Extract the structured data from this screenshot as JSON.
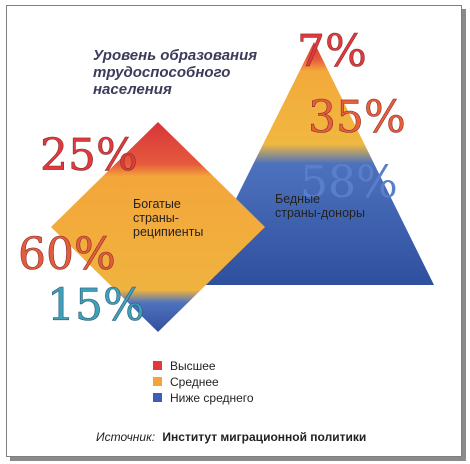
{
  "chart_data": {
    "title": [
      "Уровень образования",
      "трудоспособного",
      "населения"
    ],
    "type": "pie",
    "categories": [
      "Высшее",
      "Среднее",
      "Ниже среднего"
    ],
    "colors": [
      "#e03a3e",
      "#f2a43a",
      "#3a5fb4"
    ],
    "series": [
      {
        "name": [
          "Богатые",
          "страны-",
          "реципиенты"
        ],
        "values": [
          25,
          60,
          15
        ],
        "labels": [
          "25%",
          "60%",
          "15%"
        ]
      },
      {
        "name": [
          "Бедные",
          "страны-доноры"
        ],
        "values": [
          7,
          35,
          58
        ],
        "labels": [
          "7%",
          "35%",
          "58%"
        ]
      }
    ]
  },
  "source": {
    "prefix": "Источник:",
    "text": "Институт миграционной политики"
  }
}
